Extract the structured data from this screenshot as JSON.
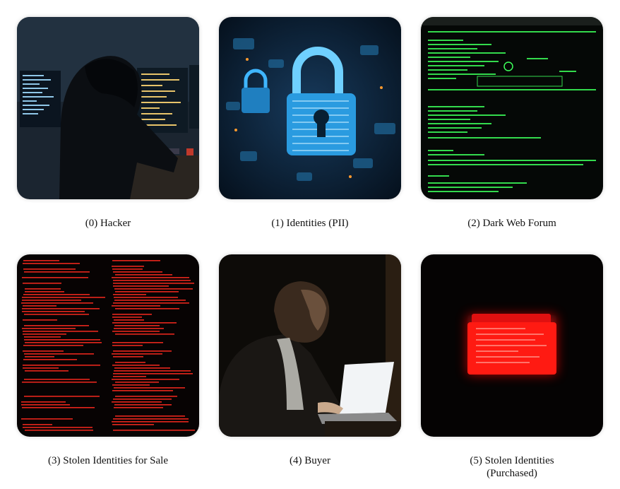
{
  "panels": [
    {
      "id": 0,
      "caption": "(0) Hacker",
      "icon": "hacker-image"
    },
    {
      "id": 1,
      "caption": "(1) Identities (PII)",
      "icon": "padlock-image"
    },
    {
      "id": 2,
      "caption": "(2) Dark Web Forum",
      "icon": "terminal-forum-image"
    },
    {
      "id": 3,
      "caption": "(3) Stolen Identities for Sale",
      "icon": "red-data-listing-image"
    },
    {
      "id": 4,
      "caption": "(4) Buyer",
      "icon": "buyer-laptop-image"
    },
    {
      "id": 5,
      "caption": "(5) Stolen Identities\n(Purchased)",
      "icon": "red-folder-image"
    }
  ],
  "colors": {
    "terminal_green": "#3cff5a",
    "terminal_red": "#ff2a1f",
    "lock_blue": "#3fb6ff",
    "folder_red": "#ff1010"
  }
}
